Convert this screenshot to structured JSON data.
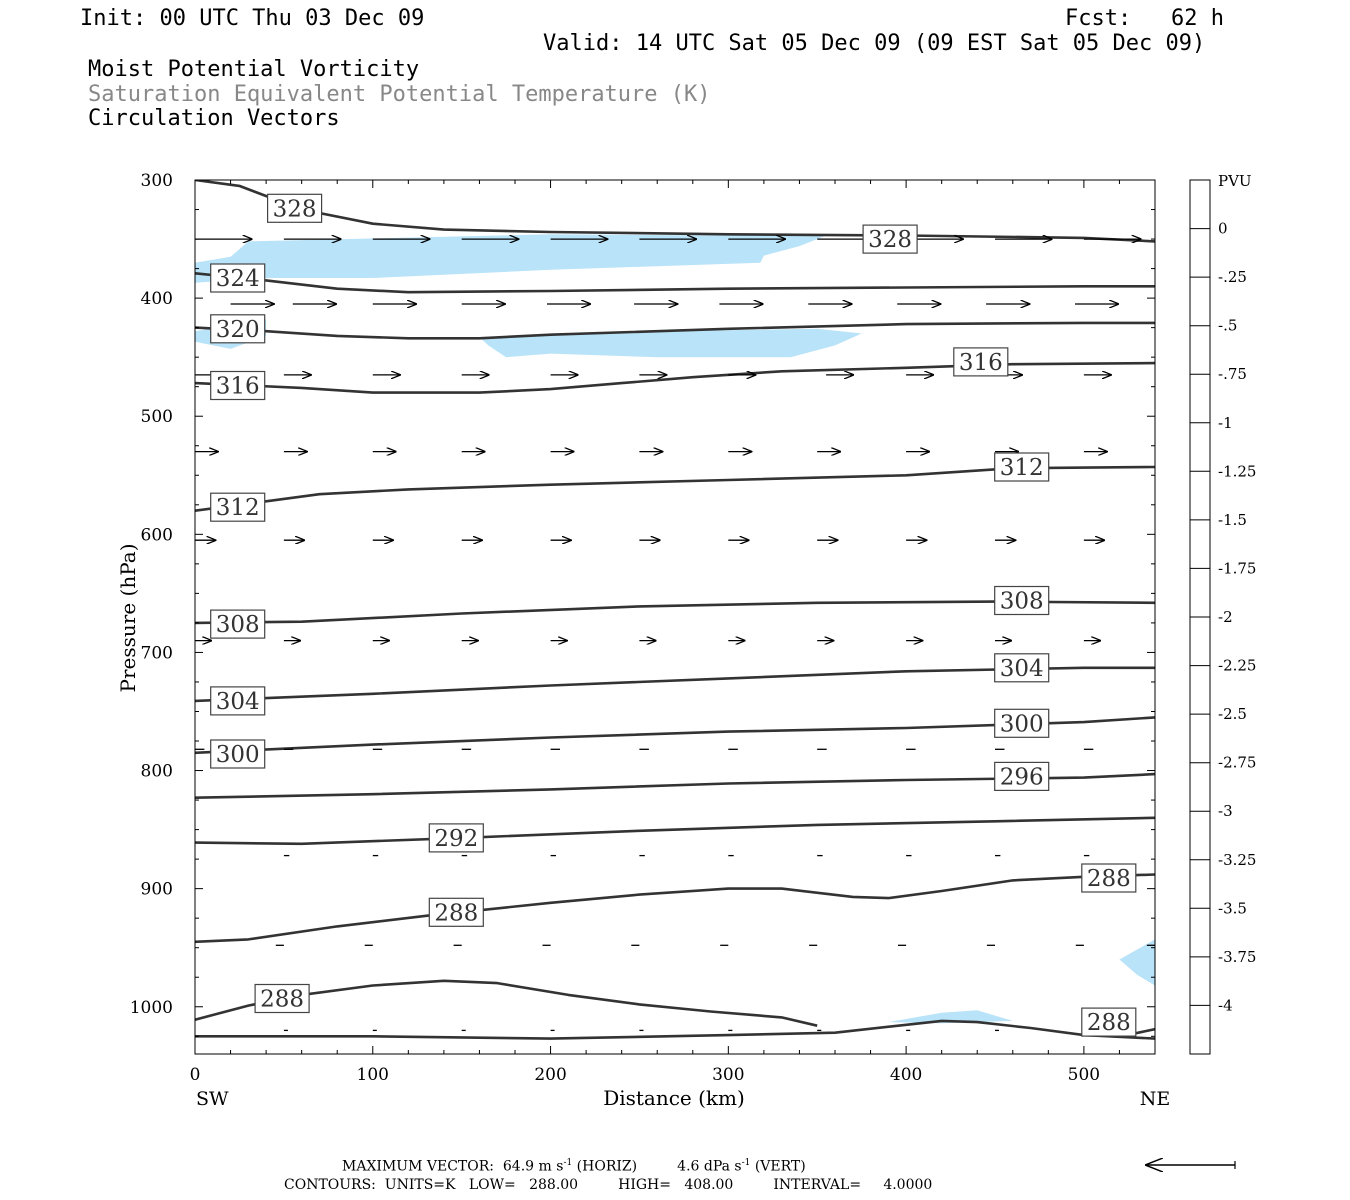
{
  "header": {
    "init": "Init: 00 UTC Thu 03 Dec 09",
    "fcst": "Fcst:   62 h",
    "valid": "Valid: 14 UTC Sat 05 Dec 09 (09 EST Sat 05 Dec 09)",
    "field1": "Moist Potential Vorticity",
    "field2": "Saturation Equivalent Potential Temperature (K)",
    "field3": "Circulation Vectors"
  },
  "footer": {
    "max_vector_label": "MAXIMUM VECTOR:",
    "max_horiz_value": "64.9",
    "max_horiz_unit": "m s",
    "max_horiz_tag": "(HORIZ)",
    "max_vert_value": "4.6",
    "max_vert_unit": "dPa s",
    "max_vert_tag": "(VERT)",
    "contours": "CONTOURS:  UNITS=K   LOW=   288.00         HIGH=   408.00         INTERVAL=     4.0000"
  },
  "colors": {
    "contour": "#333333",
    "mpv_shade": "#b9e3f8"
  },
  "chart_data": {
    "type": "contour-cross-section",
    "xlabel": "Distance (km)",
    "ylabel": "Pressure (hPa)",
    "xlim": [
      0,
      540
    ],
    "ylim": [
      1040,
      300
    ],
    "x_ticks": [
      0,
      100,
      200,
      300,
      400,
      500
    ],
    "y_ticks": [
      300,
      400,
      500,
      600,
      700,
      800,
      900,
      1000
    ],
    "x_end_labels": {
      "left": "SW",
      "right": "NE"
    },
    "colorbar": {
      "title": "PVU",
      "levels": [
        "0",
        "-.25",
        "-.5",
        "-.75",
        "-1",
        "-1.25",
        "-1.5",
        "-1.75",
        "-2",
        "-2.25",
        "-2.5",
        "-2.75",
        "-3",
        "-3.25",
        "-3.5",
        "-3.75",
        "-4"
      ],
      "colors": [
        "#ffffff",
        "#ffffff",
        "#b9e3f8",
        "#b0d4f6",
        "#a6c6f4",
        "#9cb7f2",
        "#93a9f0",
        "#899bef",
        "#808ced",
        "#767eeb",
        "#6c70ea",
        "#6362e8",
        "#5953e6",
        "#4f45e5",
        "#4537e3",
        "#3b29e1",
        "#321ae0",
        "#2810de"
      ]
    },
    "contours": [
      {
        "label": "328",
        "points": [
          [
            0,
            300
          ],
          [
            25,
            305
          ],
          [
            60,
            325
          ],
          [
            100,
            337
          ],
          [
            140,
            342
          ],
          [
            200,
            344
          ],
          [
            300,
            346
          ],
          [
            400,
            347
          ],
          [
            500,
            349
          ],
          [
            540,
            352
          ]
        ],
        "labels_at": [
          [
            56,
            324
          ],
          [
            391,
            350
          ]
        ]
      },
      {
        "label": "324",
        "points": [
          [
            0,
            379
          ],
          [
            40,
            385
          ],
          [
            80,
            392
          ],
          [
            120,
            395
          ],
          [
            200,
            394
          ],
          [
            300,
            392
          ],
          [
            400,
            391
          ],
          [
            500,
            390
          ],
          [
            540,
            390
          ]
        ],
        "labels_at": [
          [
            24,
            383
          ]
        ]
      },
      {
        "label": "320",
        "points": [
          [
            0,
            425
          ],
          [
            40,
            428
          ],
          [
            80,
            432
          ],
          [
            120,
            434
          ],
          [
            160,
            434
          ],
          [
            200,
            431
          ],
          [
            300,
            426
          ],
          [
            400,
            422
          ],
          [
            500,
            421
          ],
          [
            540,
            421
          ]
        ],
        "labels_at": [
          [
            24,
            426
          ]
        ]
      },
      {
        "label": "316",
        "points": [
          [
            0,
            472
          ],
          [
            60,
            476
          ],
          [
            100,
            480
          ],
          [
            160,
            480
          ],
          [
            200,
            477
          ],
          [
            240,
            472
          ],
          [
            280,
            467
          ],
          [
            330,
            462
          ],
          [
            400,
            459
          ],
          [
            460,
            456
          ],
          [
            540,
            455
          ]
        ],
        "labels_at": [
          [
            24,
            474
          ],
          [
            442,
            454
          ]
        ]
      },
      {
        "label": "312",
        "points": [
          [
            0,
            580
          ],
          [
            40,
            572
          ],
          [
            70,
            566
          ],
          [
            120,
            562
          ],
          [
            200,
            558
          ],
          [
            300,
            554
          ],
          [
            400,
            550
          ],
          [
            460,
            544
          ],
          [
            540,
            543
          ]
        ],
        "labels_at": [
          [
            24,
            577
          ],
          [
            465,
            543
          ]
        ]
      },
      {
        "label": "308",
        "points": [
          [
            0,
            675
          ],
          [
            60,
            674
          ],
          [
            150,
            667
          ],
          [
            250,
            661
          ],
          [
            350,
            658
          ],
          [
            450,
            657
          ],
          [
            540,
            658
          ]
        ],
        "labels_at": [
          [
            24,
            676
          ],
          [
            465,
            656
          ]
        ]
      },
      {
        "label": "304",
        "points": [
          [
            0,
            741
          ],
          [
            100,
            735
          ],
          [
            200,
            728
          ],
          [
            300,
            722
          ],
          [
            400,
            716
          ],
          [
            500,
            713
          ],
          [
            540,
            713
          ]
        ],
        "labels_at": [
          [
            24,
            741
          ],
          [
            465,
            713
          ]
        ]
      },
      {
        "label": "300",
        "points": [
          [
            0,
            785
          ],
          [
            100,
            778
          ],
          [
            200,
            772
          ],
          [
            300,
            767
          ],
          [
            400,
            764
          ],
          [
            500,
            759
          ],
          [
            540,
            755
          ]
        ],
        "labels_at": [
          [
            24,
            786
          ],
          [
            465,
            760
          ]
        ]
      },
      {
        "label": "296",
        "points": [
          [
            0,
            823
          ],
          [
            100,
            820
          ],
          [
            200,
            816
          ],
          [
            300,
            811
          ],
          [
            400,
            808
          ],
          [
            500,
            806
          ],
          [
            540,
            803
          ]
        ],
        "labels_at": [
          [
            465,
            805
          ]
        ]
      },
      {
        "label": "292",
        "points": [
          [
            0,
            861
          ],
          [
            60,
            862
          ],
          [
            150,
            857
          ],
          [
            250,
            851
          ],
          [
            350,
            846
          ],
          [
            450,
            843
          ],
          [
            540,
            840
          ]
        ],
        "labels_at": [
          [
            147,
            857
          ]
        ]
      },
      {
        "label": "288",
        "points": [
          [
            0,
            945
          ],
          [
            30,
            943
          ],
          [
            80,
            932
          ],
          [
            130,
            923
          ],
          [
            200,
            912
          ],
          [
            250,
            905
          ],
          [
            300,
            900
          ],
          [
            330,
            900
          ],
          [
            370,
            907
          ],
          [
            390,
            908
          ],
          [
            420,
            902
          ],
          [
            460,
            893
          ],
          [
            500,
            890
          ],
          [
            540,
            888
          ]
        ],
        "labels_at": [
          [
            147,
            920
          ],
          [
            514,
            891
          ]
        ]
      },
      {
        "label": "288",
        "points": [
          [
            0,
            1011
          ],
          [
            30,
            999
          ],
          [
            60,
            990
          ],
          [
            100,
            982
          ],
          [
            140,
            978
          ],
          [
            170,
            980
          ],
          [
            210,
            990
          ],
          [
            250,
            998
          ],
          [
            290,
            1004
          ],
          [
            330,
            1009
          ],
          [
            350,
            1016
          ]
        ],
        "labels_at": [
          [
            49,
            993
          ]
        ]
      },
      {
        "label": "288",
        "points": [
          [
            0,
            1025
          ],
          [
            100,
            1025
          ],
          [
            200,
            1027
          ],
          [
            300,
            1024
          ],
          [
            360,
            1022
          ],
          [
            420,
            1012
          ],
          [
            440,
            1013
          ],
          [
            470,
            1018
          ],
          [
            500,
            1024
          ],
          [
            540,
            1027
          ]
        ],
        "labels_at": [
          [
            514,
            1013
          ]
        ]
      },
      {
        "label": "",
        "points": [
          [
            524,
            1024
          ],
          [
            540,
            1019
          ]
        ],
        "labels_at": []
      }
    ],
    "shaded_regions": [
      {
        "level": "-.25",
        "points": [
          [
            30,
            352
          ],
          [
            200,
            346
          ],
          [
            300,
            347
          ],
          [
            355,
            347
          ],
          [
            340,
            356
          ],
          [
            320,
            364
          ],
          [
            318,
            370
          ],
          [
            200,
            376
          ],
          [
            100,
            383
          ],
          [
            40,
            383
          ],
          [
            0,
            387
          ],
          [
            0,
            370
          ],
          [
            20,
            365
          ],
          [
            30,
            352
          ]
        ]
      },
      {
        "level": "-.25",
        "points": [
          [
            0,
            428
          ],
          [
            40,
            418
          ],
          [
            40,
            432
          ],
          [
            20,
            443
          ],
          [
            0,
            437
          ]
        ]
      },
      {
        "level": "-.25",
        "points": [
          [
            160,
            433
          ],
          [
            260,
            428
          ],
          [
            350,
            426
          ],
          [
            375,
            430
          ],
          [
            360,
            440
          ],
          [
            335,
            450
          ],
          [
            260,
            450
          ],
          [
            200,
            447
          ],
          [
            175,
            450
          ],
          [
            165,
            440
          ]
        ]
      },
      {
        "level": "-.25",
        "points": [
          [
            520,
            960
          ],
          [
            540,
            943
          ],
          [
            540,
            982
          ],
          [
            530,
            973
          ]
        ]
      },
      {
        "level": "-.25",
        "points": [
          [
            390,
            1013
          ],
          [
            420,
            1005
          ],
          [
            440,
            1003
          ],
          [
            460,
            1012
          ],
          [
            420,
            1014
          ]
        ]
      }
    ],
    "vector_rows": [
      {
        "p": 350,
        "u": 42,
        "x": [
          0,
          50,
          100,
          150,
          200,
          250,
          300,
          350,
          400,
          450,
          500
        ]
      },
      {
        "p": 405,
        "u": 32,
        "x": [
          20,
          55,
          100,
          150,
          198,
          247,
          295,
          345,
          395,
          445,
          495
        ]
      },
      {
        "p": 465,
        "u": 20,
        "x": [
          0,
          50,
          100,
          150,
          200,
          250,
          300,
          355,
          400,
          450,
          500
        ]
      },
      {
        "p": 530,
        "u": 17,
        "x": [
          0,
          50,
          100,
          150,
          200,
          250,
          300,
          350,
          400,
          450,
          500
        ]
      },
      {
        "p": 605,
        "u": 15,
        "x": [
          0,
          50,
          100,
          150,
          200,
          250,
          300,
          350,
          400,
          450,
          500
        ]
      },
      {
        "p": 690,
        "u": 12,
        "x": [
          0,
          50,
          100,
          150,
          200,
          250,
          300,
          350,
          400,
          450,
          500
        ]
      },
      {
        "p": 782,
        "u": 7,
        "x": [
          0,
          50,
          100,
          150,
          200,
          250,
          300,
          350,
          400,
          450,
          500
        ]
      },
      {
        "p": 872,
        "u": 4,
        "x": [
          50,
          100,
          150,
          200,
          250,
          300,
          350,
          400,
          450,
          500
        ]
      },
      {
        "p": 948,
        "u": -6,
        "x": [
          50,
          100,
          150,
          200,
          250,
          300,
          350,
          400,
          450,
          500,
          540
        ]
      },
      {
        "p": 1020,
        "u": 3,
        "x": [
          50,
          100,
          150,
          200,
          250,
          300,
          350,
          400,
          450,
          500
        ]
      }
    ],
    "reference_vector": {
      "u": 64.9,
      "direction": "left"
    }
  }
}
